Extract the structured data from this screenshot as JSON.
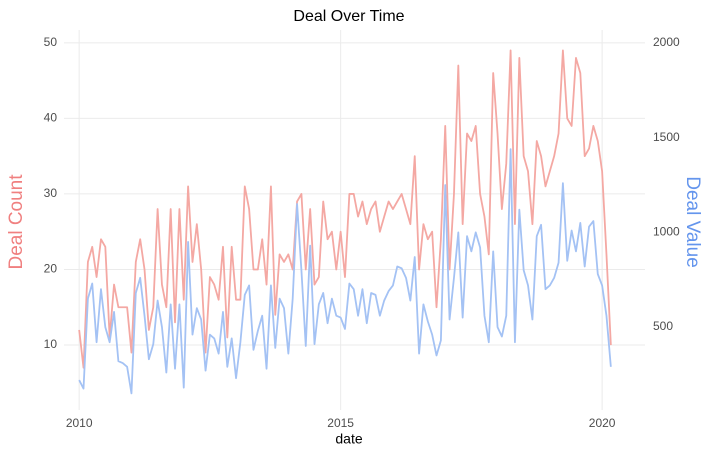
{
  "chart_data": {
    "type": "line",
    "title": "Deal Over Time",
    "xlabel": "date",
    "ylabel": "Deal Count",
    "y2label": "Deal Value",
    "x": [
      2010,
      2010.083,
      2010.167,
      2010.25,
      2010.333,
      2010.417,
      2010.5,
      2010.583,
      2010.667,
      2010.75,
      2010.833,
      2010.917,
      2011,
      2011.083,
      2011.167,
      2011.25,
      2011.333,
      2011.417,
      2011.5,
      2011.583,
      2011.667,
      2011.75,
      2011.833,
      2011.917,
      2012,
      2012.083,
      2012.167,
      2012.25,
      2012.333,
      2012.417,
      2012.5,
      2012.583,
      2012.667,
      2012.75,
      2012.833,
      2012.917,
      2013,
      2013.083,
      2013.167,
      2013.25,
      2013.333,
      2013.417,
      2013.5,
      2013.583,
      2013.667,
      2013.75,
      2013.833,
      2013.917,
      2014,
      2014.083,
      2014.167,
      2014.25,
      2014.333,
      2014.417,
      2014.5,
      2014.583,
      2014.667,
      2014.75,
      2014.833,
      2014.917,
      2015,
      2015.083,
      2015.167,
      2015.25,
      2015.333,
      2015.417,
      2015.5,
      2015.583,
      2015.667,
      2015.75,
      2015.833,
      2015.917,
      2016,
      2016.083,
      2016.167,
      2016.25,
      2016.333,
      2016.417,
      2016.5,
      2016.583,
      2016.667,
      2016.75,
      2016.833,
      2016.917,
      2017,
      2017.083,
      2017.167,
      2017.25,
      2017.333,
      2017.417,
      2017.5,
      2017.583,
      2017.667,
      2017.75,
      2017.833,
      2017.917,
      2018,
      2018.083,
      2018.167,
      2018.25,
      2018.333,
      2018.417,
      2018.5,
      2018.583,
      2018.667,
      2018.75,
      2018.833,
      2018.917,
      2019,
      2019.083,
      2019.167,
      2019.25,
      2019.333,
      2019.417,
      2019.5,
      2019.583,
      2019.667,
      2019.75,
      2019.833,
      2019.917,
      2020,
      2020.083,
      2020.167
    ],
    "series": [
      {
        "color": "#f4a8a3",
        "values": [
          12,
          7,
          21,
          23,
          19,
          24,
          23,
          11,
          18,
          15,
          15,
          15,
          9,
          21,
          24,
          20,
          12,
          15,
          28,
          18,
          15,
          28,
          13,
          28,
          16,
          31,
          21,
          26,
          20,
          9,
          19,
          18,
          16,
          23,
          11,
          23,
          16,
          16,
          31,
          28,
          20,
          20,
          24,
          18,
          31,
          14,
          22,
          21,
          22,
          20,
          29,
          30,
          20,
          28,
          18,
          19,
          29,
          24,
          25,
          20,
          25,
          19,
          30,
          30,
          27,
          29,
          26,
          28,
          29,
          25,
          27,
          29,
          28,
          29,
          30,
          28,
          26,
          35,
          20,
          26,
          24,
          25,
          15,
          24,
          39,
          20,
          30,
          47,
          26,
          38,
          37,
          39,
          30,
          27,
          22,
          46,
          38,
          28,
          34,
          49,
          26,
          48,
          35,
          33,
          26,
          37,
          35,
          31,
          33,
          35,
          38,
          49,
          40,
          39,
          48,
          46,
          35,
          36,
          39,
          37,
          33,
          22,
          10
        ]
      },
      {
        "color": "#a4c2f4",
        "axis": "y2",
        "values": [
          220,
          175,
          650,
          730,
          420,
          700,
          500,
          420,
          580,
          320,
          310,
          290,
          150,
          680,
          760,
          560,
          330,
          410,
          640,
          500,
          260,
          620,
          280,
          620,
          180,
          950,
          460,
          600,
          540,
          270,
          460,
          440,
          360,
          580,
          290,
          440,
          230,
          420,
          670,
          720,
          380,
          480,
          560,
          280,
          720,
          390,
          650,
          600,
          360,
          650,
          1150,
          800,
          400,
          930,
          410,
          620,
          680,
          520,
          650,
          560,
          550,
          490,
          730,
          700,
          560,
          700,
          520,
          680,
          670,
          560,
          640,
          690,
          720,
          820,
          810,
          760,
          640,
          870,
          360,
          620,
          530,
          460,
          350,
          430,
          1250,
          540,
          760,
          1000,
          550,
          980,
          900,
          1000,
          920,
          560,
          420,
          900,
          500,
          450,
          560,
          1440,
          420,
          1120,
          800,
          720,
          540,
          980,
          1040,
          700,
          720,
          760,
          840,
          1260,
          850,
          1010,
          900,
          1050,
          820,
          1030,
          1060,
          780,
          720,
          560,
          290
        ]
      }
    ],
    "xlim": [
      2009.71,
      2020.82
    ],
    "xticks": [
      2010,
      2015,
      2020
    ],
    "ylim": [
      1.4,
      51.7
    ],
    "yticks": [
      10,
      20,
      30,
      40,
      50
    ],
    "y2lim": [
      62,
      2069
    ],
    "y2ticks": [
      500,
      1000,
      1500,
      2000
    ],
    "grid": true
  }
}
